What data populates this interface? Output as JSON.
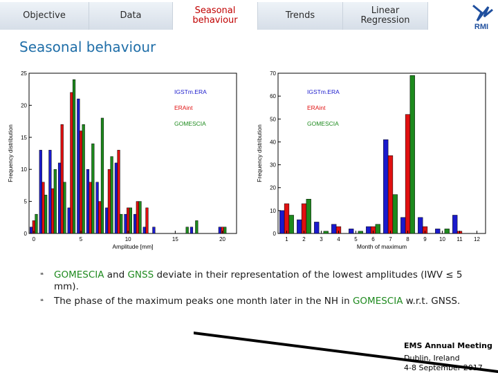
{
  "nav": {
    "tabs": [
      {
        "label": "Objective",
        "active": false
      },
      {
        "label": "Data",
        "active": false
      },
      {
        "label": "Seasonal\nbehaviour",
        "active": true
      },
      {
        "label": "Trends",
        "active": false
      },
      {
        "label": "Linear\nRegression",
        "active": false
      }
    ],
    "logo_text": "RMI"
  },
  "page_title": "Seasonal behaviour",
  "colors": {
    "IGSTmERA": "#1a1acc",
    "ERAint": "#e01010",
    "GOMESCIA": "#1d8a1d",
    "title": "#1f6ea8"
  },
  "chart_data": [
    {
      "type": "bar",
      "xlabel": "Amplitude [mm]",
      "ylabel": "Frequency distribution",
      "xlim": [
        -0.5,
        21.5
      ],
      "ylim": [
        0,
        25
      ],
      "xticks": [
        0,
        5,
        10,
        15,
        20
      ],
      "yticks": [
        0,
        5,
        10,
        15,
        20,
        25
      ],
      "categories": [
        0,
        1,
        2,
        3,
        4,
        5,
        6,
        7,
        8,
        9,
        10,
        11,
        12,
        13,
        14,
        15,
        16,
        17,
        18,
        19,
        20
      ],
      "series": [
        {
          "name": "IGSTm.ERA",
          "values": [
            1,
            13,
            13,
            11,
            4,
            21,
            10,
            8,
            4,
            11,
            3,
            3,
            1,
            1,
            0,
            0,
            0,
            1,
            0,
            0,
            1
          ]
        },
        {
          "name": "ERAint",
          "values": [
            2,
            8,
            7,
            17,
            22,
            16,
            8,
            5,
            10,
            13,
            4,
            5,
            4,
            0,
            0,
            0,
            0,
            0,
            0,
            0,
            1
          ]
        },
        {
          "name": "GOMESCIA",
          "values": [
            3,
            6,
            10,
            8,
            24,
            17,
            14,
            18,
            12,
            3,
            4,
            5,
            0,
            0,
            0,
            0,
            1,
            2,
            0,
            0,
            1
          ]
        }
      ]
    },
    {
      "type": "bar",
      "xlabel": "Month of maximum",
      "ylabel": "Frequency distribution",
      "xlim": [
        0.5,
        12.5
      ],
      "ylim": [
        0,
        70
      ],
      "xticks": [
        1,
        2,
        3,
        4,
        5,
        6,
        7,
        8,
        9,
        10,
        11,
        12
      ],
      "yticks": [
        0,
        10,
        20,
        30,
        40,
        50,
        60,
        70
      ],
      "categories": [
        1,
        2,
        3,
        4,
        5,
        6,
        7,
        8,
        9,
        10,
        11,
        12
      ],
      "series": [
        {
          "name": "IGSTm.ERA",
          "values": [
            10,
            6,
            5,
            4,
            2,
            3,
            41,
            7,
            7,
            2,
            8,
            0
          ]
        },
        {
          "name": "ERAint",
          "values": [
            13,
            13,
            0,
            3,
            0,
            3,
            34,
            52,
            3,
            0,
            1,
            0
          ]
        },
        {
          "name": "GOMESCIA",
          "values": [
            8,
            15,
            1,
            0,
            1,
            4,
            17,
            69,
            0,
            2,
            0,
            0
          ]
        }
      ]
    }
  ],
  "bullets": [
    {
      "parts": [
        {
          "t": "GOMESCIA",
          "c": "green"
        },
        {
          "t": " and "
        },
        {
          "t": "GNSS",
          "c": "green"
        },
        {
          "t": " deviate in their representation of the lowest amplitudes (IWV ≤ 5 mm)."
        }
      ]
    },
    {
      "parts": [
        {
          "t": "The phase of the maximum peaks one month later in the NH in "
        },
        {
          "t": "GOMESCIA",
          "c": "green"
        },
        {
          "t": " w.r.t. GNSS."
        }
      ]
    }
  ],
  "footer": {
    "org": "EMS Annual Meeting",
    "location": "Dublin, Ireland",
    "dates": "4-8 September 2017"
  }
}
